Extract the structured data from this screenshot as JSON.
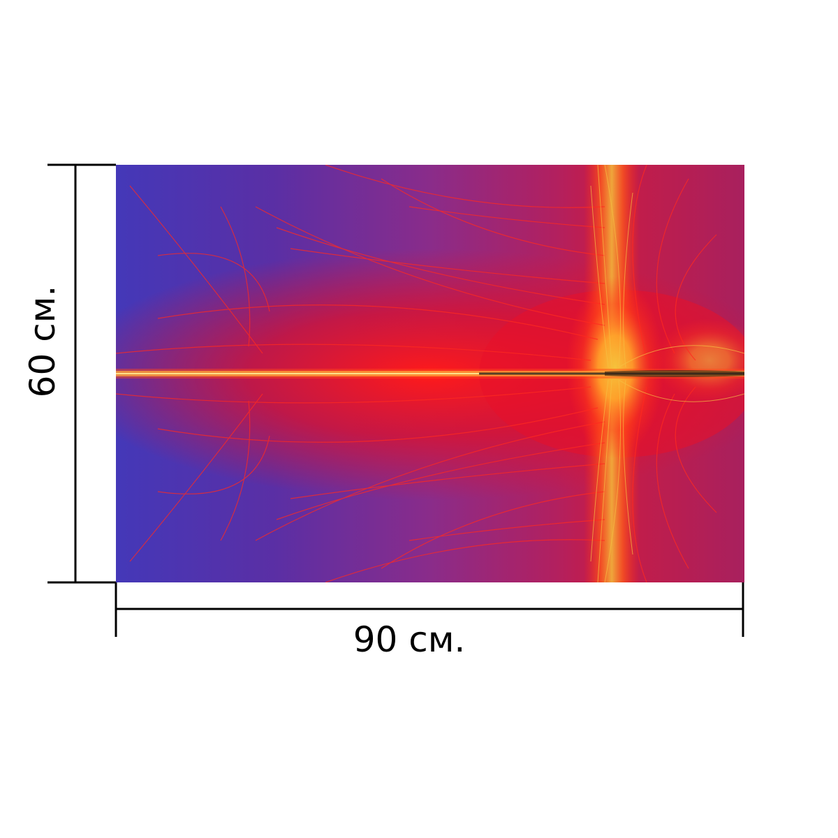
{
  "product": {
    "width_label": "90 см.",
    "height_label": "60 см."
  },
  "colors": {
    "blue": "#4536b8",
    "purple": "#7a2a8a",
    "red": "#e0102a",
    "orange": "#ff4a18",
    "yellow": "#f2b63a",
    "dark_line": "#2b1a10",
    "dimension_line": "#000000"
  }
}
